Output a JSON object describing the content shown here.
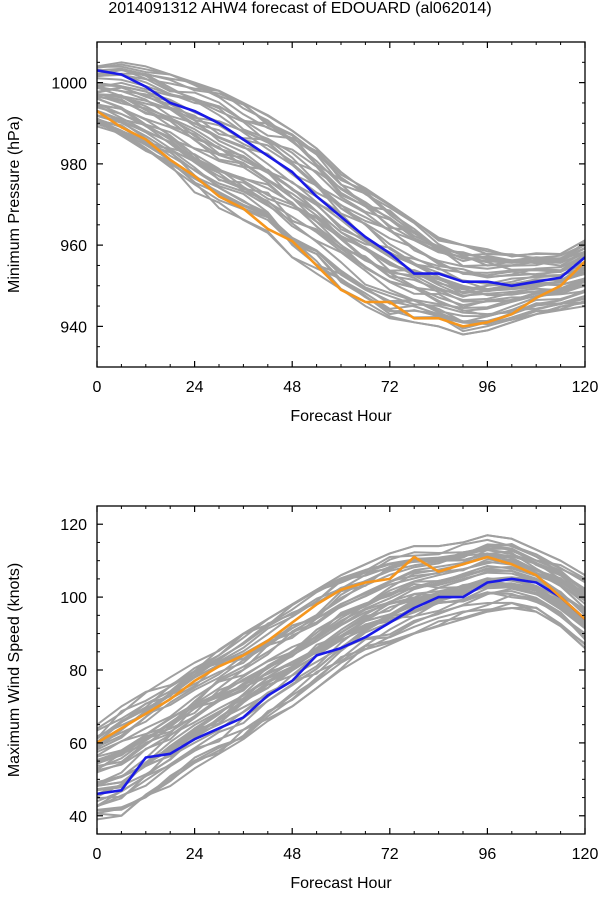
{
  "title": "2014091312 AHW4 forecast of EDOUARD (al062014)",
  "colors": {
    "ensemble": "#a0a0a0",
    "blue": "#1a1ae6",
    "orange": "#f5961e",
    "frame": "#000000"
  },
  "chart_data": [
    {
      "type": "line",
      "title": "",
      "xlabel": "Forecast Hour",
      "ylabel": "Minimum Pressure (hPa)",
      "xlim": [
        0,
        120
      ],
      "ylim": [
        930,
        1010
      ],
      "xticks": [
        0,
        24,
        48,
        72,
        96,
        120
      ],
      "yticks": [
        940,
        960,
        980,
        1000
      ],
      "grid": false,
      "x": [
        0,
        6,
        12,
        18,
        24,
        30,
        36,
        42,
        48,
        54,
        60,
        66,
        72,
        78,
        84,
        90,
        96,
        102,
        108,
        114,
        120
      ],
      "ensemble_lower": [
        989,
        986,
        982,
        978,
        973,
        969,
        966,
        963,
        957,
        953,
        949,
        945,
        942,
        941,
        940,
        938,
        939,
        941,
        943,
        944,
        945
      ],
      "ensemble_upper": [
        1004,
        1005,
        1004,
        1002,
        1000,
        998,
        995,
        992,
        989,
        984,
        978,
        974,
        970,
        966,
        962,
        960,
        959,
        958,
        958,
        958,
        962
      ],
      "series": [
        {
          "color": "#1a1ae6",
          "values": [
            1003,
            1002,
            999,
            995,
            993,
            990,
            986,
            982,
            978,
            972,
            967,
            962,
            958,
            953,
            953,
            951,
            951,
            950,
            951,
            952,
            957
          ]
        },
        {
          "color": "#f5961e",
          "values": [
            993,
            989,
            986,
            981,
            977,
            972,
            969,
            964,
            961,
            955,
            949,
            946,
            946,
            942,
            942,
            940,
            941,
            943,
            947,
            950,
            956
          ]
        }
      ]
    },
    {
      "type": "line",
      "title": "",
      "xlabel": "Forecast Hour",
      "ylabel": "Maximum Wind Speed (knots)",
      "xlim": [
        0,
        120
      ],
      "ylim": [
        35,
        125
      ],
      "xticks": [
        0,
        24,
        48,
        72,
        96,
        120
      ],
      "yticks": [
        40,
        60,
        80,
        100,
        120
      ],
      "grid": false,
      "x": [
        0,
        6,
        12,
        18,
        24,
        30,
        36,
        42,
        48,
        54,
        60,
        66,
        72,
        78,
        84,
        90,
        96,
        102,
        108,
        114,
        120
      ],
      "ensemble_lower": [
        39,
        40,
        44,
        48,
        53,
        57,
        61,
        66,
        70,
        75,
        80,
        84,
        87,
        90,
        92,
        94,
        96,
        97,
        96,
        92,
        86
      ],
      "ensemble_upper": [
        65,
        70,
        74,
        78,
        82,
        86,
        90,
        94,
        98,
        102,
        106,
        109,
        112,
        114,
        114,
        115,
        117,
        116,
        113,
        110,
        106
      ],
      "series": [
        {
          "color": "#1a1ae6",
          "values": [
            46,
            47,
            56,
            57,
            61,
            64,
            67,
            73,
            77,
            84,
            86,
            89,
            93,
            97,
            100,
            100,
            104,
            105,
            104,
            100,
            94
          ]
        },
        {
          "color": "#f5961e",
          "values": [
            60,
            64,
            68,
            72,
            77,
            81,
            84,
            88,
            93,
            98,
            102,
            104,
            105,
            111,
            107,
            109,
            111,
            109,
            106,
            100,
            94
          ]
        }
      ]
    }
  ]
}
